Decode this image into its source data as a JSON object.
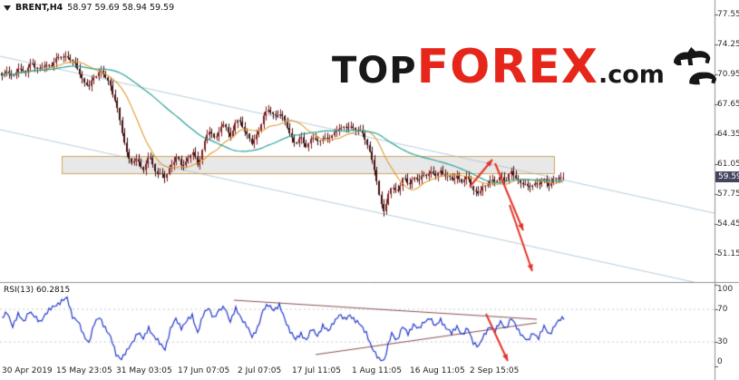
{
  "symbol_bar": {
    "symbol": "BRENT,H4",
    "quote": "58.97 59.69 58.94 59.59"
  },
  "watermark": {
    "top": "TOP",
    "forex": "FOREX",
    "com": ".com"
  },
  "price_axis": {
    "ticks": [
      77.55,
      74.25,
      70.95,
      67.65,
      64.35,
      61.05,
      57.75,
      54.45,
      51.15
    ],
    "current_price": "59.59"
  },
  "time_axis": {
    "labels": [
      "30 Apr 2019",
      "15 May 23:05",
      "31 May 03:05",
      "17 Jun 07:05",
      "2 Jul 07:05",
      "17 Jul 11:05",
      "1 Aug 11:05",
      "16 Aug 11:05",
      "2 Sep 15:05"
    ]
  },
  "rsi_panel": {
    "label": "RSI(13) 60.2815",
    "ticks": [
      100,
      70,
      30,
      0
    ]
  },
  "colors": {
    "candle_up": "#7d1f1f",
    "candle_down": "#3f0d0d",
    "ma_fast": "#e09b32",
    "ma_slow": "#2aa198",
    "channel": "#b9cfdd",
    "zone_fill": "rgba(190,190,190,0.35)",
    "zone_border": "#cfa45c",
    "arrow": "#e23327",
    "rsi_line": "#2238c8",
    "wedge": "#8a5252",
    "level_dash": "#c9c9d6",
    "axis": "#8f8f8f",
    "tick": "#555555"
  },
  "chart_data": {
    "type": "candlestick",
    "symbol": "BRENT",
    "timeframe": "H4",
    "title": "BRENT,H4",
    "last_quote": {
      "open": 58.97,
      "high": 59.69,
      "low": 58.94,
      "close": 59.59
    },
    "y_ticks": [
      77.55,
      74.25,
      70.95,
      67.65,
      64.35,
      61.05,
      57.75,
      54.45,
      51.15
    ],
    "ylim": [
      48.1,
      79.2
    ],
    "x_tick_labels": [
      "30 Apr 2019",
      "15 May 23:05",
      "31 May 03:05",
      "17 Jun 07:05",
      "2 Jul 07:05",
      "17 Jul 11:05",
      "1 Aug 11:05",
      "16 Aug 11:05",
      "2 Sep 15:05"
    ],
    "price_anchors": [
      [
        2,
        70.8
      ],
      [
        8,
        71.6
      ],
      [
        14,
        70.3
      ],
      [
        20,
        71.8
      ],
      [
        28,
        71.2
      ],
      [
        36,
        72.2
      ],
      [
        44,
        71.5
      ],
      [
        52,
        71.9
      ],
      [
        60,
        72.4
      ],
      [
        68,
        72.9
      ],
      [
        74,
        73.1
      ],
      [
        80,
        72.2
      ],
      [
        86,
        71.6
      ],
      [
        92,
        70.2
      ],
      [
        98,
        69.4
      ],
      [
        104,
        70.9
      ],
      [
        110,
        71.3
      ],
      [
        116,
        70.6
      ],
      [
        122,
        69.8
      ],
      [
        128,
        67.6
      ],
      [
        134,
        64.8
      ],
      [
        140,
        62.4
      ],
      [
        146,
        60.9
      ],
      [
        152,
        61.7
      ],
      [
        158,
        60.4
      ],
      [
        164,
        61.9
      ],
      [
        170,
        60.6
      ],
      [
        176,
        60.0
      ],
      [
        182,
        59.4
      ],
      [
        188,
        61.0
      ],
      [
        194,
        61.8
      ],
      [
        200,
        60.8
      ],
      [
        206,
        61.6
      ],
      [
        212,
        62.4
      ],
      [
        218,
        60.9
      ],
      [
        224,
        63.2
      ],
      [
        230,
        64.6
      ],
      [
        236,
        64.0
      ],
      [
        242,
        64.9
      ],
      [
        248,
        65.3
      ],
      [
        254,
        64.1
      ],
      [
        260,
        65.9
      ],
      [
        266,
        65.3
      ],
      [
        272,
        64.6
      ],
      [
        278,
        63.2
      ],
      [
        284,
        64.3
      ],
      [
        290,
        66.5
      ],
      [
        296,
        66.9
      ],
      [
        302,
        66.4
      ],
      [
        308,
        66.8
      ],
      [
        314,
        65.6
      ],
      [
        320,
        64.4
      ],
      [
        326,
        63.3
      ],
      [
        332,
        63.8
      ],
      [
        338,
        63.1
      ],
      [
        344,
        64.0
      ],
      [
        350,
        63.4
      ],
      [
        356,
        64.2
      ],
      [
        362,
        63.6
      ],
      [
        368,
        64.5
      ],
      [
        374,
        65.2
      ],
      [
        380,
        64.8
      ],
      [
        386,
        65.4
      ],
      [
        392,
        64.9
      ],
      [
        398,
        64.5
      ],
      [
        404,
        63.8
      ],
      [
        410,
        61.5
      ],
      [
        414,
        59.8
      ],
      [
        418,
        57.6
      ],
      [
        424,
        55.9
      ],
      [
        428,
        57.4
      ],
      [
        432,
        58.6
      ],
      [
        438,
        58.1
      ],
      [
        444,
        59.4
      ],
      [
        450,
        58.8
      ],
      [
        456,
        59.7
      ],
      [
        462,
        59.2
      ],
      [
        468,
        59.9
      ],
      [
        474,
        60.3
      ],
      [
        480,
        59.6
      ],
      [
        486,
        60.4
      ],
      [
        492,
        59.8
      ],
      [
        498,
        59.2
      ],
      [
        504,
        59.9
      ],
      [
        510,
        59.0
      ],
      [
        516,
        59.6
      ],
      [
        522,
        58.3
      ],
      [
        528,
        57.7
      ],
      [
        534,
        58.6
      ],
      [
        540,
        59.4
      ],
      [
        546,
        58.9
      ],
      [
        552,
        59.8
      ],
      [
        558,
        59.3
      ],
      [
        564,
        60.1
      ],
      [
        570,
        59.5
      ],
      [
        576,
        58.9
      ],
      [
        582,
        58.4
      ],
      [
        588,
        59.1
      ],
      [
        594,
        58.7
      ],
      [
        600,
        59.3
      ],
      [
        606,
        58.9
      ],
      [
        612,
        59.3
      ],
      [
        618,
        59.6
      ],
      [
        622,
        59.59
      ]
    ],
    "resistance_zone": {
      "price_top": 61.95,
      "price_bottom": 59.95,
      "x_start": 68,
      "x_end": 612
    },
    "channel_lines": {
      "upper": [
        [
          0,
          62
        ],
        [
          788,
          235
        ]
      ],
      "lower": [
        [
          0,
          143
        ],
        [
          765,
          311
        ]
      ]
    },
    "forecast_arrows": [
      {
        "from": [
          518,
          206
        ],
        "to": [
          543,
          176
        ]
      },
      {
        "from": [
          546,
          180
        ],
        "to": [
          577,
          254
        ]
      },
      {
        "from": [
          562,
          226
        ],
        "to": [
          587,
          299
        ]
      }
    ],
    "moving_averages": [
      {
        "name": "fast",
        "period": 16,
        "color": "#e09b32"
      },
      {
        "name": "slow",
        "period": 52,
        "color": "#2aa198"
      }
    ],
    "rsi": {
      "label": "RSI(13)",
      "value": 60.2815,
      "scale_ticks": [
        100,
        70,
        30,
        0
      ],
      "levels": [
        70,
        30
      ],
      "points": [
        [
          2,
          58
        ],
        [
          8,
          66
        ],
        [
          14,
          50
        ],
        [
          20,
          63
        ],
        [
          26,
          55
        ],
        [
          32,
          68
        ],
        [
          38,
          60
        ],
        [
          44,
          55
        ],
        [
          50,
          64
        ],
        [
          56,
          70
        ],
        [
          62,
          76
        ],
        [
          68,
          80
        ],
        [
          74,
          83
        ],
        [
          80,
          62
        ],
        [
          86,
          55
        ],
        [
          92,
          38
        ],
        [
          98,
          30
        ],
        [
          104,
          52
        ],
        [
          110,
          60
        ],
        [
          116,
          48
        ],
        [
          122,
          35
        ],
        [
          128,
          15
        ],
        [
          134,
          10
        ],
        [
          140,
          18
        ],
        [
          146,
          30
        ],
        [
          152,
          42
        ],
        [
          158,
          33
        ],
        [
          164,
          48
        ],
        [
          170,
          36
        ],
        [
          176,
          28
        ],
        [
          182,
          22
        ],
        [
          188,
          45
        ],
        [
          194,
          58
        ],
        [
          200,
          48
        ],
        [
          206,
          55
        ],
        [
          212,
          62
        ],
        [
          218,
          42
        ],
        [
          224,
          62
        ],
        [
          230,
          72
        ],
        [
          236,
          60
        ],
        [
          242,
          68
        ],
        [
          248,
          73
        ],
        [
          254,
          55
        ],
        [
          260,
          70
        ],
        [
          266,
          60
        ],
        [
          272,
          50
        ],
        [
          278,
          35
        ],
        [
          284,
          48
        ],
        [
          290,
          68
        ],
        [
          296,
          75
        ],
        [
          302,
          70
        ],
        [
          308,
          74
        ],
        [
          314,
          58
        ],
        [
          320,
          44
        ],
        [
          326,
          32
        ],
        [
          332,
          40
        ],
        [
          338,
          33
        ],
        [
          344,
          45
        ],
        [
          350,
          38
        ],
        [
          356,
          50
        ],
        [
          362,
          42
        ],
        [
          368,
          55
        ],
        [
          374,
          63
        ],
        [
          380,
          57
        ],
        [
          386,
          64
        ],
        [
          392,
          55
        ],
        [
          398,
          50
        ],
        [
          404,
          42
        ],
        [
          410,
          22
        ],
        [
          414,
          15
        ],
        [
          418,
          10
        ],
        [
          424,
          8
        ],
        [
          428,
          25
        ],
        [
          432,
          40
        ],
        [
          438,
          33
        ],
        [
          444,
          48
        ],
        [
          450,
          40
        ],
        [
          456,
          52
        ],
        [
          462,
          45
        ],
        [
          468,
          55
        ],
        [
          474,
          60
        ],
        [
          480,
          48
        ],
        [
          486,
          58
        ],
        [
          492,
          47
        ],
        [
          498,
          40
        ],
        [
          504,
          50
        ],
        [
          510,
          38
        ],
        [
          516,
          46
        ],
        [
          522,
          30
        ],
        [
          528,
          24
        ],
        [
          534,
          38
        ],
        [
          540,
          50
        ],
        [
          546,
          42
        ],
        [
          552,
          55
        ],
        [
          558,
          47
        ],
        [
          564,
          58
        ],
        [
          570,
          48
        ],
        [
          576,
          38
        ],
        [
          582,
          30
        ],
        [
          588,
          42
        ],
        [
          594,
          35
        ],
        [
          600,
          48
        ],
        [
          606,
          40
        ],
        [
          612,
          50
        ],
        [
          618,
          57
        ],
        [
          622,
          60.3
        ]
      ],
      "wedge_lines": {
        "upper": [
          [
            258,
            331
          ],
          [
            592,
            352
          ]
        ],
        "lower": [
          [
            348,
            391
          ],
          [
            592,
            356
          ]
        ]
      },
      "arrow": {
        "from": [
          536,
          346
        ],
        "to": [
          560,
          398
        ]
      }
    }
  }
}
